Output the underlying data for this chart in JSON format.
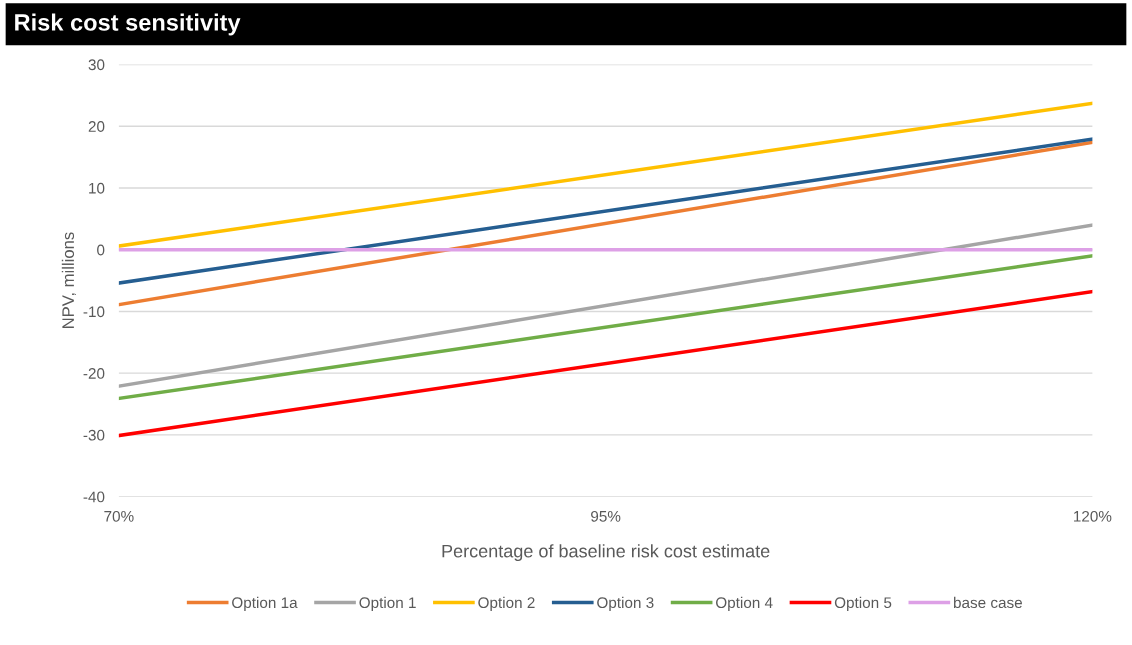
{
  "chart_data": {
    "type": "line",
    "title": "Risk cost sensitivity",
    "xlabel": "Percentage of baseline risk cost estimate",
    "ylabel": "NPV, millions",
    "x": [
      70,
      120
    ],
    "xlim": [
      70,
      120
    ],
    "xticks": [
      {
        "value": 70,
        "label": "70%"
      },
      {
        "value": 95,
        "label": "95%"
      },
      {
        "value": 120,
        "label": "120%"
      }
    ],
    "ylim": [
      -40,
      30
    ],
    "yticks": [
      -40,
      -30,
      -20,
      -10,
      0,
      10,
      20,
      30
    ],
    "grid": "y",
    "legend": "bottom",
    "marker": "none",
    "line_style": "solid",
    "series": [
      {
        "name": "Option 1a",
        "color": "#ed7d31",
        "values": [
          -8.9,
          17.4
        ]
      },
      {
        "name": "Option 1",
        "color": "#a5a5a5",
        "values": [
          -22.1,
          4.0
        ]
      },
      {
        "name": "Option 2",
        "color": "#ffc000",
        "values": [
          0.6,
          23.7
        ]
      },
      {
        "name": "Option 3",
        "color": "#255e91",
        "values": [
          -5.4,
          17.9
        ]
      },
      {
        "name": "Option 4",
        "color": "#70ad47",
        "values": [
          -24.1,
          -1.0
        ]
      },
      {
        "name": "Option 5",
        "color": "#ff0000",
        "values": [
          -30.1,
          -6.8
        ]
      },
      {
        "name": "base case",
        "color": "#dda0e6",
        "values": [
          0,
          0
        ]
      }
    ]
  }
}
